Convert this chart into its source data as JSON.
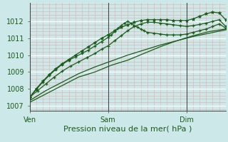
{
  "bg_color": "#cce8e8",
  "grid_color_major": "#ffffff",
  "grid_color_minor": "#ddb8b8",
  "line_color": "#1a5c1a",
  "xlabel": "Pression niveau de la mer( hPa )",
  "xlabel_fontsize": 8,
  "tick_label_fontsize": 7,
  "day_labels": [
    "Ven",
    "Sam",
    "Dim"
  ],
  "day_positions": [
    0,
    48,
    96
  ],
  "xlim": [
    0,
    120
  ],
  "ylim": [
    1006.7,
    1013.1
  ],
  "yticks": [
    1007,
    1008,
    1009,
    1010,
    1011,
    1012
  ],
  "series_linear_x": [
    0,
    10,
    20,
    30,
    40,
    50,
    60,
    70,
    80,
    90,
    100,
    110,
    120
  ],
  "series_linear_y": [
    1007.2,
    1007.7,
    1008.2,
    1008.7,
    1009.0,
    1009.4,
    1009.7,
    1010.1,
    1010.5,
    1010.85,
    1011.15,
    1011.4,
    1011.55
  ],
  "series_linear2_x": [
    0,
    10,
    20,
    30,
    40,
    50,
    60,
    70,
    80,
    90,
    100,
    110,
    120
  ],
  "series_linear2_y": [
    1007.3,
    1007.9,
    1008.4,
    1008.9,
    1009.3,
    1009.65,
    1010.0,
    1010.3,
    1010.6,
    1010.85,
    1011.1,
    1011.3,
    1011.5
  ],
  "series_peaked_x": [
    0,
    5,
    10,
    15,
    20,
    25,
    30,
    35,
    40,
    44,
    48,
    52,
    56,
    60,
    64,
    68,
    72,
    76,
    80,
    84,
    88,
    92,
    96,
    100,
    104,
    108,
    112,
    116,
    120
  ],
  "series_peaked_y": [
    1007.5,
    1007.9,
    1008.3,
    1008.7,
    1009.05,
    1009.35,
    1009.6,
    1009.85,
    1010.1,
    1010.35,
    1010.55,
    1010.85,
    1011.15,
    1011.45,
    1011.7,
    1011.85,
    1011.95,
    1011.95,
    1011.9,
    1011.85,
    1011.8,
    1011.75,
    1011.7,
    1011.75,
    1011.82,
    1011.9,
    1012.0,
    1012.1,
    1011.7
  ],
  "series_bump_x": [
    0,
    4,
    8,
    12,
    16,
    20,
    24,
    28,
    32,
    36,
    40,
    44,
    48,
    50,
    52,
    54,
    56,
    58,
    60,
    62,
    64,
    66,
    68,
    70,
    72,
    76,
    80,
    84,
    88,
    92,
    96,
    100,
    104,
    108,
    112,
    116,
    120
  ],
  "series_bump_y": [
    1007.5,
    1007.95,
    1008.4,
    1008.8,
    1009.15,
    1009.45,
    1009.7,
    1009.9,
    1010.1,
    1010.3,
    1010.55,
    1010.8,
    1011.05,
    1011.2,
    1011.4,
    1011.6,
    1011.75,
    1011.9,
    1012.0,
    1011.9,
    1011.75,
    1011.65,
    1011.55,
    1011.45,
    1011.35,
    1011.3,
    1011.25,
    1011.2,
    1011.2,
    1011.2,
    1011.25,
    1011.35,
    1011.45,
    1011.55,
    1011.7,
    1011.85,
    1011.6
  ],
  "series_star_x": [
    0,
    4,
    8,
    12,
    16,
    20,
    24,
    28,
    32,
    36,
    40,
    44,
    48,
    52,
    56,
    60,
    64,
    68,
    72,
    76,
    80,
    84,
    88,
    92,
    96,
    100,
    104,
    108,
    112,
    116,
    120
  ],
  "series_star_y": [
    1007.5,
    1008.0,
    1008.45,
    1008.85,
    1009.2,
    1009.5,
    1009.75,
    1010.0,
    1010.25,
    1010.5,
    1010.75,
    1011.0,
    1011.2,
    1011.45,
    1011.65,
    1011.8,
    1011.95,
    1012.05,
    1012.1,
    1012.1,
    1012.1,
    1012.1,
    1012.05,
    1012.05,
    1012.05,
    1012.15,
    1012.3,
    1012.45,
    1012.55,
    1012.5,
    1012.1
  ]
}
